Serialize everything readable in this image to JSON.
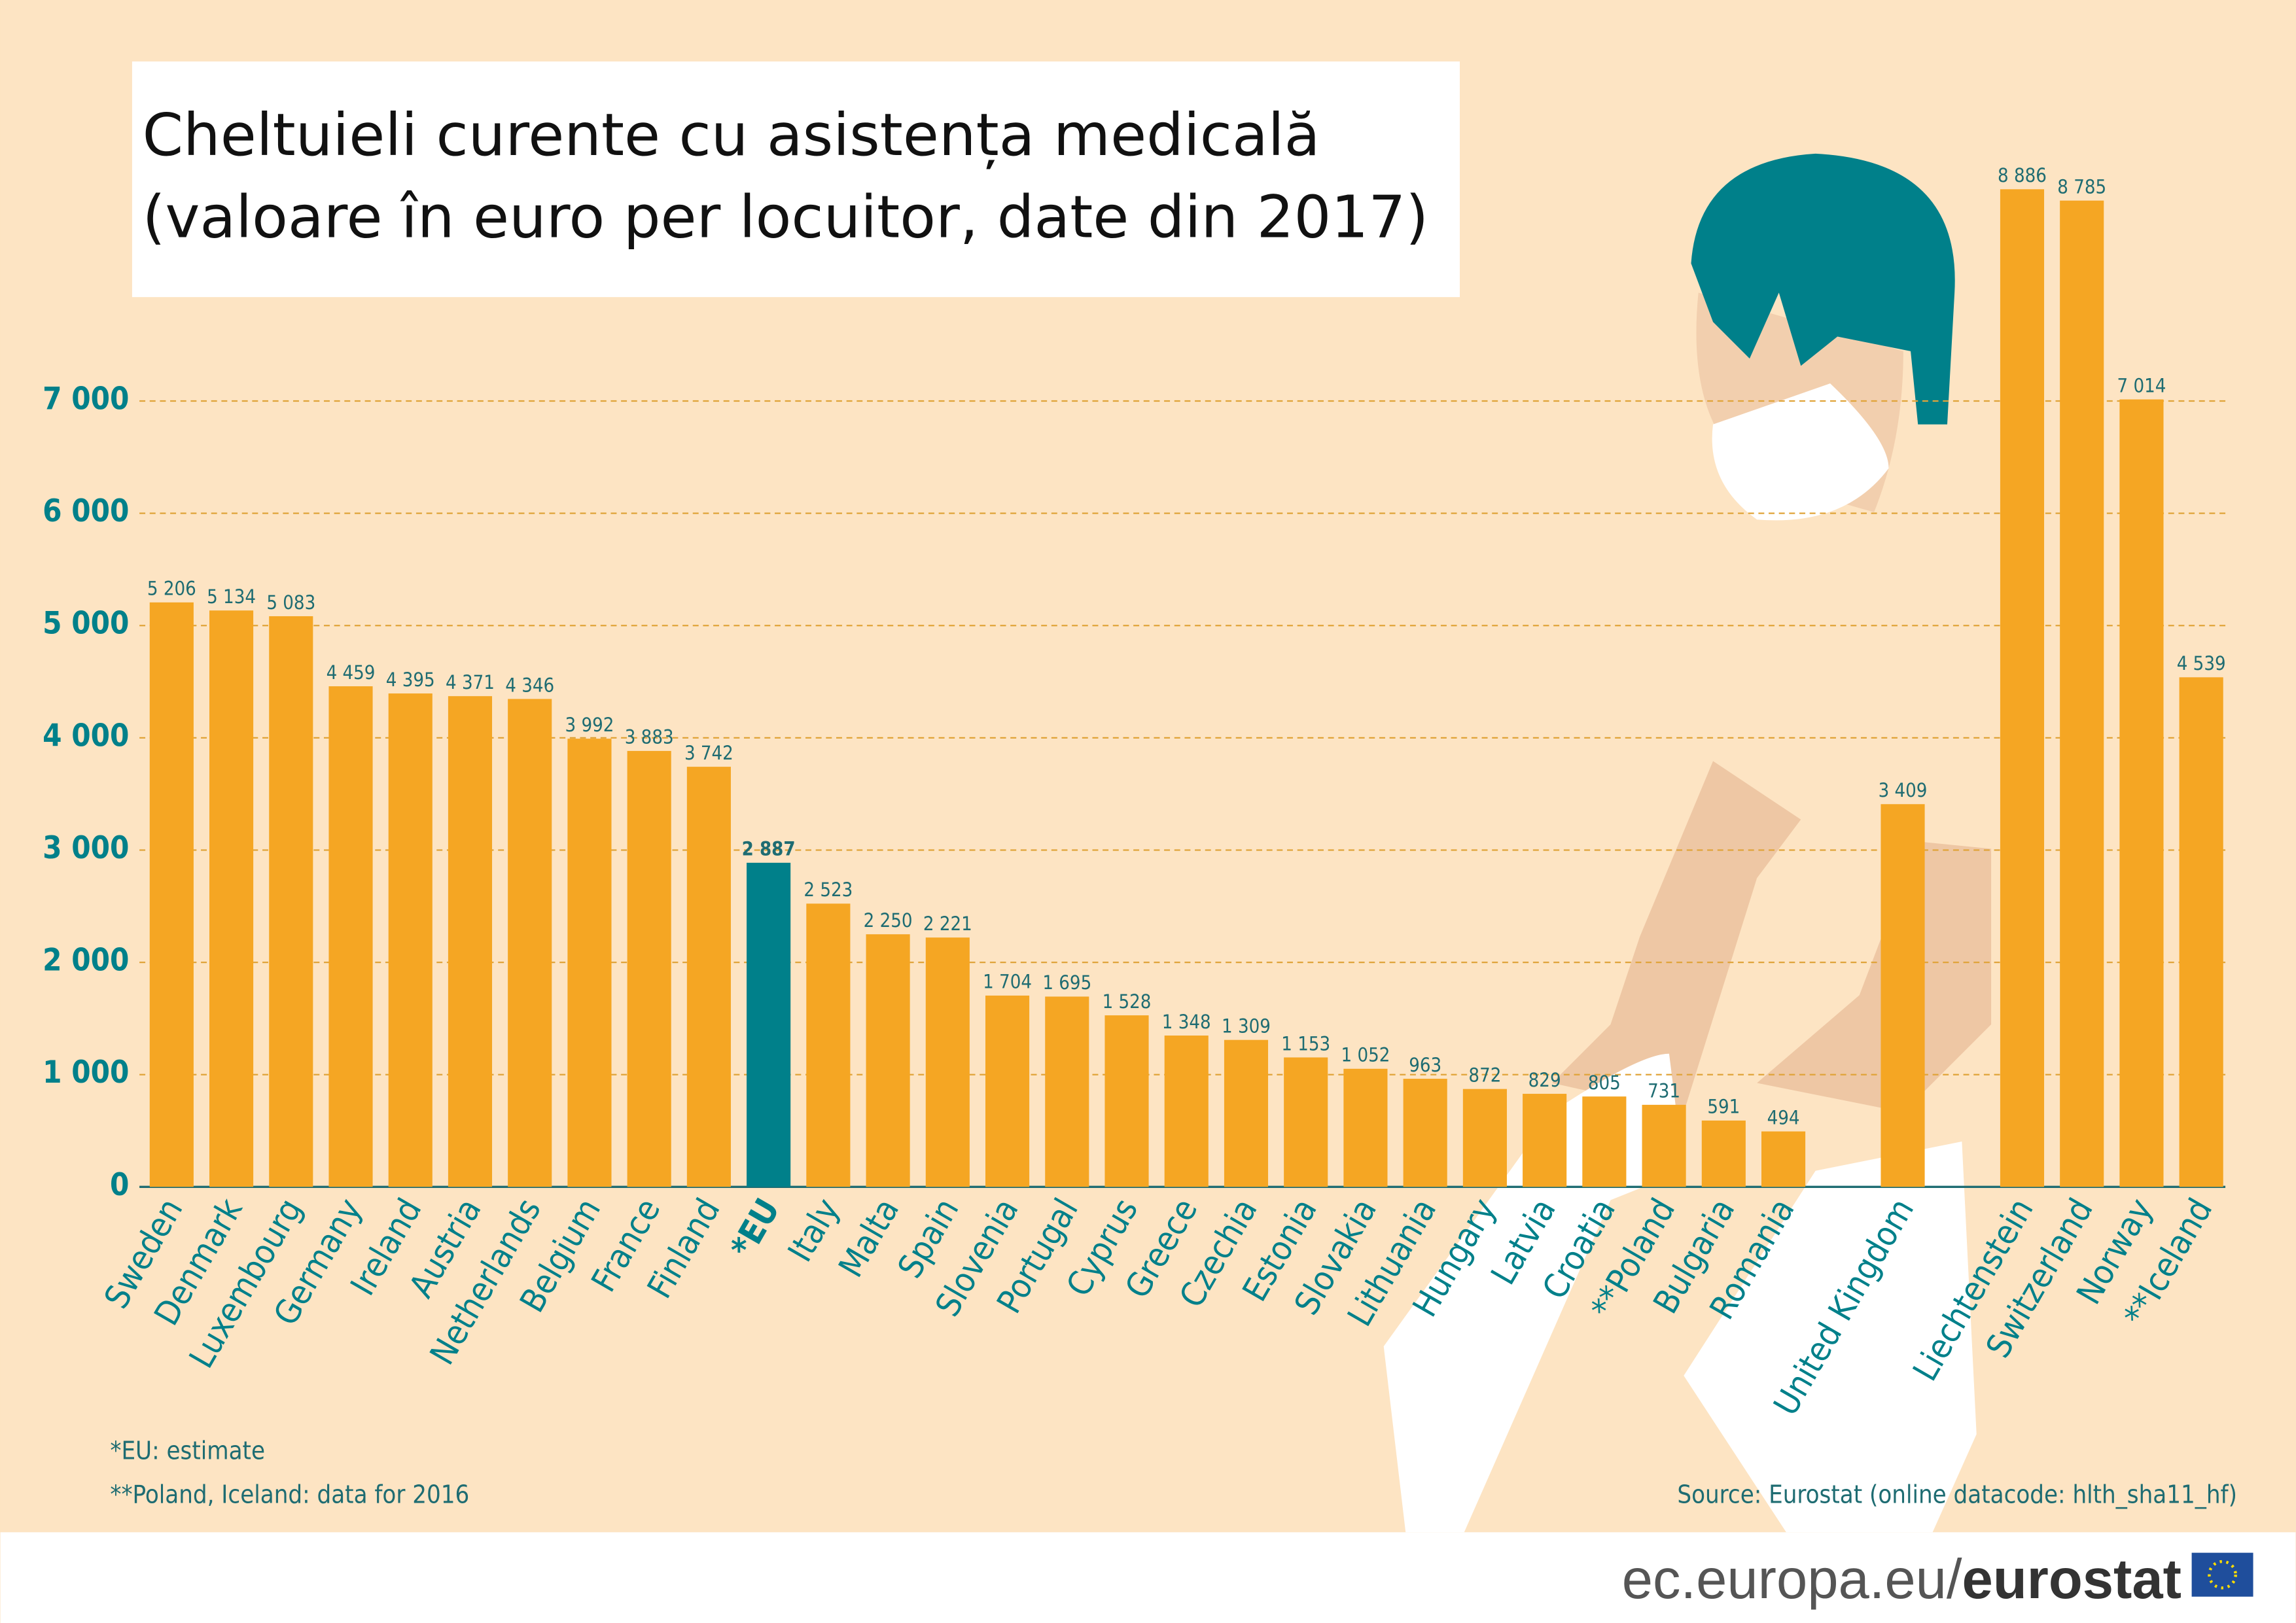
{
  "chart_data": {
    "type": "bar",
    "title": "Cheltuieli curente cu asistența medicală",
    "subtitle": "(valoare în euro per locuitor, date din 2017)",
    "categories": [
      "Sweden",
      "Denmark",
      "Luxembourg",
      "Germany",
      "Ireland",
      "Austria",
      "Netherlands",
      "Belgium",
      "France",
      "Finland",
      "*EU",
      "Italy",
      "Malta",
      "Spain",
      "Slovenia",
      "Portugal",
      "Cyprus",
      "Greece",
      "Czechia",
      "Estonia",
      "Slovakia",
      "Lithuania",
      "Hungary",
      "Latvia",
      "Croatia",
      "**Poland",
      "Bulgaria",
      "Romania",
      "United Kingdom",
      "Liechtenstein",
      "Switzerland",
      "Norway",
      "**Iceland"
    ],
    "values": [
      5206,
      5134,
      5083,
      4459,
      4395,
      4371,
      4346,
      3992,
      3883,
      3742,
      2887,
      2523,
      2250,
      2221,
      1704,
      1695,
      1528,
      1348,
      1309,
      1153,
      1052,
      963,
      872,
      829,
      805,
      731,
      591,
      494,
      3409,
      8886,
      8785,
      7014,
      4539
    ],
    "value_labels": [
      "5 206",
      "5 134",
      "5 083",
      "4 459",
      "4 395",
      "4 371",
      "4 346",
      "3 992",
      "3 883",
      "3 742",
      "2 887",
      "2 523",
      "2 250",
      "2 221",
      "1 704",
      "1 695",
      "1 528",
      "1 348",
      "1 309",
      "1 153",
      "1 052",
      "963",
      "872",
      "829",
      "805",
      "731",
      "591",
      "494",
      "3 409",
      "8 886",
      "8 785",
      "7 014",
      "4 539"
    ],
    "colors": [
      "#f5a623",
      "#f5a623",
      "#f5a623",
      "#f5a623",
      "#f5a623",
      "#f5a623",
      "#f5a623",
      "#f5a623",
      "#f5a623",
      "#f5a623",
      "#00808a",
      "#f5a623",
      "#f5a623",
      "#f5a623",
      "#f5a623",
      "#f5a623",
      "#f5a623",
      "#f5a623",
      "#f5a623",
      "#f5a623",
      "#f5a623",
      "#f5a623",
      "#f5a623",
      "#f5a623",
      "#f5a623",
      "#f5a623",
      "#f5a623",
      "#f5a623",
      "#f5a623",
      "#f5a623",
      "#f5a623",
      "#f5a623",
      "#f5a623"
    ],
    "ylim": [
      0,
      7000
    ],
    "yticks": [
      0,
      {
        "value": 1000,
        "label": "1 000"
      },
      {
        "value": 2000,
        "label": "2 000"
      },
      {
        "value": 3000,
        "label": "3 000"
      },
      {
        "value": 4000,
        "label": "4 000"
      },
      {
        "value": 5000,
        "label": "5 000"
      },
      {
        "value": 6000,
        "label": "6 000"
      },
      {
        "value": 7000,
        "label": "7 000"
      }
    ],
    "grid": true,
    "notes": [
      "*EU: estimate",
      "**Poland, Iceland: data for 2016"
    ],
    "source": "Source:  Eurostat (online datacode: hlth_sha11_hf)",
    "footer": {
      "site": "ec.europa.eu/",
      "brand": "eurostat"
    }
  }
}
